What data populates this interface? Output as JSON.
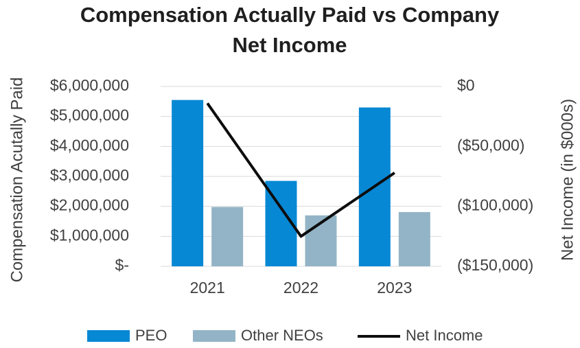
{
  "chart_data": {
    "type": "bar",
    "title": "Compensation Actually Paid vs Company Net Income",
    "title_lines": [
      "Compensation Actually Paid vs Company",
      "Net Income"
    ],
    "categories": [
      "2021",
      "2022",
      "2023"
    ],
    "series": [
      {
        "name": "PEO",
        "kind": "bar",
        "axis": "left",
        "color": "#0788d4",
        "values": [
          5550000,
          2850000,
          5300000
        ]
      },
      {
        "name": "Other NEOs",
        "kind": "bar",
        "axis": "left",
        "color": "#93b4c6",
        "values": [
          1980000,
          1700000,
          1810000
        ]
      },
      {
        "name": "Net Income",
        "kind": "line",
        "axis": "right",
        "color": "#0d0d0d",
        "values": [
          -14000,
          -125000,
          -72000
        ]
      }
    ],
    "ylabel": "Compensation Acutally Paid",
    "y2label": "Net Income (in $000s)",
    "ylim": [
      0,
      6000000
    ],
    "y2lim": [
      -150000,
      0
    ],
    "yticks": [
      0,
      1000000,
      2000000,
      3000000,
      4000000,
      5000000,
      6000000
    ],
    "ytick_labels": [
      "$-",
      "$1,000,000",
      "$2,000,000",
      "$3,000,000",
      "$4,000,000",
      "$5,000,000",
      "$6,000,000"
    ],
    "y2ticks": [
      0,
      -50000,
      -100000,
      -150000
    ],
    "y2tick_labels": [
      "$0",
      "($50,000)",
      "($100,000)",
      "($150,000)"
    ],
    "grid": true,
    "legend": "bottom"
  }
}
